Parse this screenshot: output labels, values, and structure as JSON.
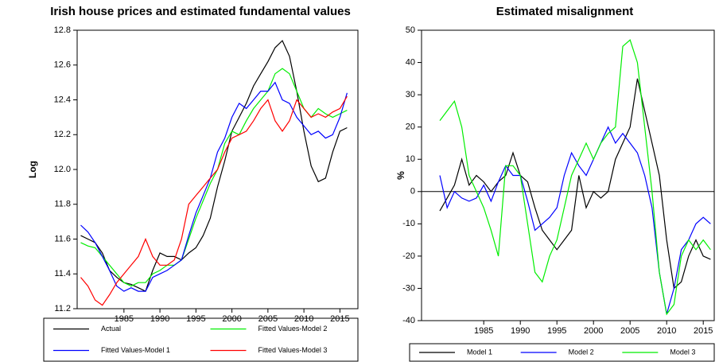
{
  "chart_data": [
    {
      "type": "line",
      "title": "Irish house prices and estimated fundamental values",
      "y_label": "Log",
      "x": [
        1979,
        1980,
        1981,
        1982,
        1983,
        1984,
        1985,
        1986,
        1987,
        1988,
        1989,
        1990,
        1991,
        1992,
        1993,
        1994,
        1995,
        1996,
        1997,
        1998,
        1999,
        2000,
        2001,
        2002,
        2003,
        2004,
        2005,
        2006,
        2007,
        2008,
        2009,
        2010,
        2011,
        2012,
        2013,
        2014,
        2015,
        2016
      ],
      "xlim": [
        1978.5,
        2017.5
      ],
      "xticks": [
        1985,
        1990,
        1995,
        2000,
        2005,
        2010,
        2015
      ],
      "ylim": [
        11.2,
        12.8
      ],
      "yticks": [
        11.2,
        11.4,
        11.6,
        11.8,
        {
          "value": 12,
          "label": "12.0"
        },
        12.2,
        12.4,
        12.6,
        12.8
      ],
      "legend": "bottom",
      "series": [
        {
          "name": "Actual",
          "color": "#000000",
          "values": [
            11.62,
            11.6,
            11.58,
            11.52,
            11.42,
            11.38,
            11.35,
            11.34,
            11.32,
            11.3,
            11.42,
            11.52,
            11.5,
            11.5,
            11.48,
            11.52,
            11.55,
            11.62,
            11.72,
            11.9,
            12.05,
            12.22,
            12.3,
            12.38,
            12.48,
            12.55,
            12.62,
            12.7,
            12.74,
            12.65,
            12.45,
            12.22,
            12.02,
            11.93,
            11.95,
            12.1,
            12.22,
            12.24
          ]
        },
        {
          "name": "Fitted Values-Model 2",
          "color": "#00ee00",
          "values": [
            11.58,
            11.56,
            11.55,
            11.5,
            11.45,
            11.4,
            11.35,
            11.33,
            11.35,
            11.35,
            11.4,
            11.42,
            11.45,
            11.45,
            11.48,
            11.6,
            11.72,
            11.82,
            11.92,
            12.0,
            12.15,
            12.22,
            12.2,
            12.28,
            12.35,
            12.4,
            12.45,
            12.55,
            12.58,
            12.55,
            12.45,
            12.35,
            12.3,
            12.35,
            12.32,
            12.3,
            12.32,
            12.34
          ]
        },
        {
          "name": "Fitted Values-Model 1",
          "color": "#0000ff",
          "values": [
            11.68,
            11.64,
            11.58,
            11.5,
            11.42,
            11.33,
            11.3,
            11.32,
            11.3,
            11.3,
            11.38,
            11.4,
            11.42,
            11.45,
            11.48,
            11.62,
            11.75,
            11.85,
            11.95,
            12.1,
            12.18,
            12.3,
            12.38,
            12.35,
            12.4,
            12.45,
            12.45,
            12.5,
            12.4,
            12.38,
            12.3,
            12.25,
            12.2,
            12.22,
            12.18,
            12.2,
            12.3,
            12.44
          ]
        },
        {
          "name": "Fitted Values-Model 3",
          "color": "#ff0000",
          "values": [
            11.38,
            11.33,
            11.25,
            11.22,
            11.28,
            11.35,
            11.4,
            11.45,
            11.5,
            11.6,
            11.5,
            11.45,
            11.45,
            11.48,
            11.6,
            11.8,
            11.85,
            11.9,
            11.95,
            12.0,
            12.1,
            12.18,
            12.2,
            12.22,
            12.28,
            12.35,
            12.4,
            12.28,
            12.22,
            12.28,
            12.4,
            12.35,
            12.3,
            12.32,
            12.3,
            12.33,
            12.35,
            12.42
          ]
        }
      ]
    },
    {
      "type": "line",
      "title": "Estimated misalignment",
      "y_label": "%",
      "x": [
        1979,
        1980,
        1981,
        1982,
        1983,
        1984,
        1985,
        1986,
        1987,
        1988,
        1989,
        1990,
        1991,
        1992,
        1993,
        1994,
        1995,
        1996,
        1997,
        1998,
        1999,
        2000,
        2001,
        2002,
        2003,
        2004,
        2005,
        2006,
        2007,
        2008,
        2009,
        2010,
        2011,
        2012,
        2013,
        2014,
        2015,
        2016
      ],
      "xlim": [
        1976.5,
        2016.5
      ],
      "xticks": [
        1985,
        1990,
        1995,
        2000,
        2005,
        2010,
        2015
      ],
      "ylim": [
        -40,
        50
      ],
      "yticks": [
        -40,
        -30,
        -20,
        -10,
        0,
        10,
        20,
        30,
        40,
        50
      ],
      "reference_line": 0,
      "legend": "bottom",
      "series": [
        {
          "name": "Model 1",
          "color": "#000000",
          "values": [
            -6,
            -2,
            2,
            10,
            2,
            5,
            3,
            0,
            3,
            5,
            12,
            5,
            3,
            -5,
            -12,
            -15,
            -18,
            -15,
            -12,
            5,
            -5,
            0,
            -2,
            0,
            10,
            15,
            20,
            35,
            25,
            15,
            5,
            -15,
            -30,
            -28,
            -20,
            -15,
            -20,
            -21
          ]
        },
        {
          "name": "Model 2",
          "color": "#0000ff",
          "values": [
            5,
            -5,
            0,
            -2,
            -3,
            -2,
            2,
            -3,
            3,
            8,
            5,
            5,
            -3,
            -12,
            -10,
            -8,
            -5,
            5,
            12,
            8,
            5,
            10,
            15,
            20,
            15,
            18,
            15,
            12,
            5,
            -5,
            -25,
            -38,
            -30,
            -18,
            -15,
            -10,
            -8,
            -10
          ]
        },
        {
          "name": "Model 3",
          "color": "#00ee00",
          "values": [
            22,
            25,
            28,
            20,
            5,
            0,
            -5,
            -12,
            -20,
            8,
            8,
            5,
            -10,
            -25,
            -28,
            -20,
            -15,
            -5,
            5,
            10,
            15,
            10,
            15,
            18,
            20,
            45,
            47,
            40,
            20,
            0,
            -25,
            -38,
            -35,
            -20,
            -15,
            -18,
            -15,
            -18
          ]
        }
      ]
    }
  ]
}
